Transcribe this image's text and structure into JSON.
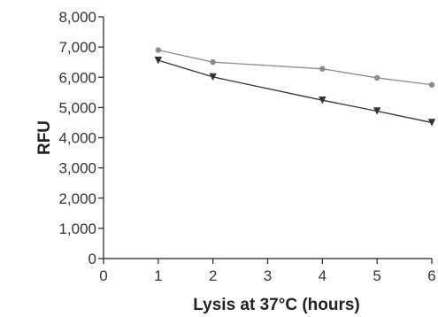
{
  "chart_data": {
    "type": "line",
    "title": "",
    "xlabel": "Lysis at 37°C (hours)",
    "ylabel": "RFU",
    "xlim": [
      0,
      6
    ],
    "ylim": [
      0,
      8000
    ],
    "x_ticks": [
      0,
      1,
      2,
      3,
      4,
      5,
      6
    ],
    "y_ticks": [
      0,
      1000,
      2000,
      3000,
      4000,
      5000,
      6000,
      7000,
      8000
    ],
    "x_tick_labels": [
      "0",
      "1",
      "2",
      "3",
      "4",
      "5",
      "6"
    ],
    "y_tick_labels": [
      "0",
      "1,000",
      "2,000",
      "3,000",
      "4,000",
      "5,000",
      "6,000",
      "7,000",
      "8,000"
    ],
    "grid": false,
    "legend": "none",
    "series": [
      {
        "marker": "circle",
        "color": "#8c8c8c",
        "x": [
          1,
          2,
          4,
          5,
          6
        ],
        "values": [
          6900,
          6500,
          6280,
          5980,
          5750
        ]
      },
      {
        "marker": "triangle-down",
        "color": "#333333",
        "x": [
          1,
          2,
          4,
          5,
          6
        ],
        "values": [
          6560,
          6010,
          5240,
          4880,
          4500
        ]
      }
    ]
  }
}
